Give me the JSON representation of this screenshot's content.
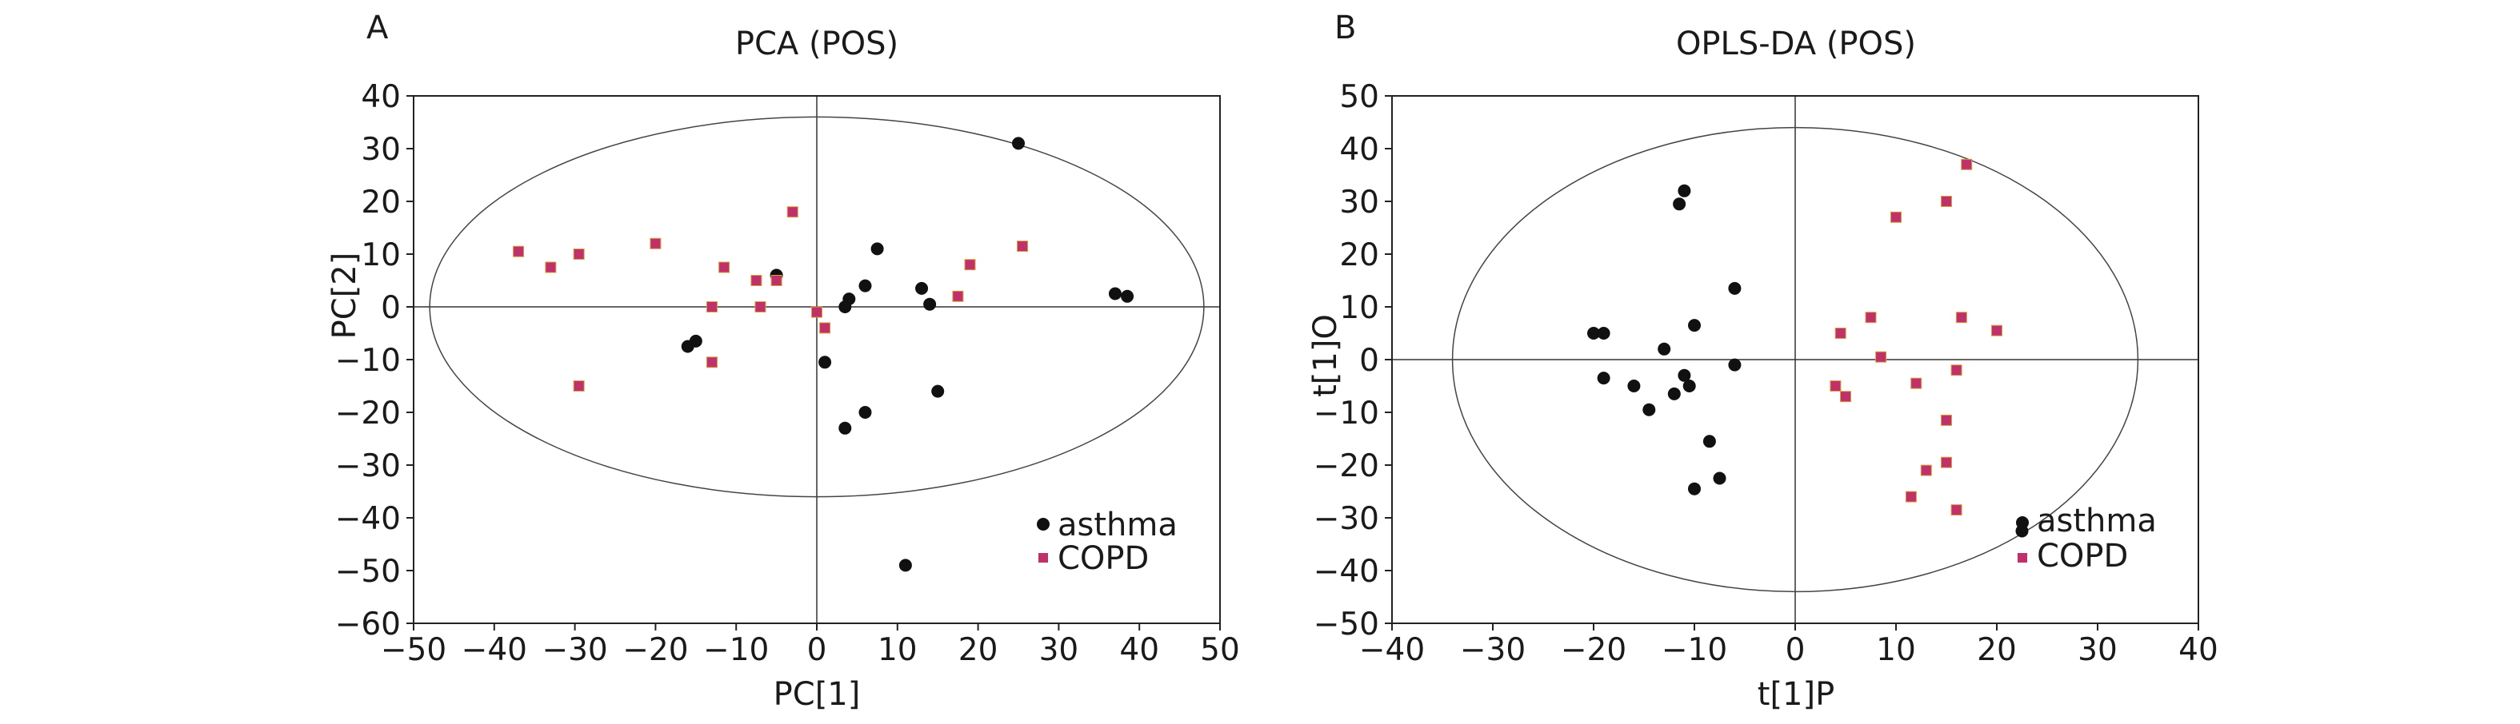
{
  "chart_data": [
    {
      "type": "scatter",
      "panel_label": "A",
      "title": "PCA (POS)",
      "xlabel": "PC[1]",
      "ylabel": "PC[2]",
      "xlim": [
        -50,
        50
      ],
      "ylim": [
        -60,
        40
      ],
      "xticks": [
        -50,
        -40,
        -30,
        -20,
        -10,
        0,
        10,
        20,
        30,
        40,
        50
      ],
      "yticks": [
        -60,
        -50,
        -40,
        -30,
        -20,
        -10,
        0,
        10,
        20,
        30,
        40
      ],
      "xtick_labels": [
        "−50",
        "−40",
        "−30",
        "−20",
        "−10",
        "0",
        "10",
        "20",
        "30",
        "40",
        "50"
      ],
      "ytick_labels": [
        "−60",
        "−50",
        "−40",
        "−30",
        "−20",
        "−10",
        "0",
        "10",
        "20",
        "30",
        "40"
      ],
      "grid": false,
      "zero_lines": true,
      "ellipse": {
        "cx": 0,
        "cy": 0,
        "rx": 48,
        "ry": 36
      },
      "legend_placement": "bottom-right",
      "series": [
        {
          "name": "asthma",
          "marker": "circle",
          "color": "#111111",
          "points": [
            [
              25,
              31
            ],
            [
              7.5,
              11
            ],
            [
              -5,
              6
            ],
            [
              6,
              4
            ],
            [
              4,
              1.5
            ],
            [
              3.5,
              0
            ],
            [
              13,
              3.5
            ],
            [
              14,
              0.5
            ],
            [
              37,
              2.5
            ],
            [
              38.5,
              2
            ],
            [
              -15,
              -6.5
            ],
            [
              -16,
              -7.5
            ],
            [
              1,
              -10.5
            ],
            [
              15,
              -16
            ],
            [
              6,
              -20
            ],
            [
              3.5,
              -23
            ],
            [
              11,
              -49
            ]
          ]
        },
        {
          "name": "COPD",
          "marker": "square",
          "color": "#c0306a",
          "points": [
            [
              -37,
              10.5
            ],
            [
              -33,
              7.5
            ],
            [
              -29.5,
              10
            ],
            [
              -20,
              12
            ],
            [
              -11.5,
              7.5
            ],
            [
              -3,
              18
            ],
            [
              -7.5,
              5
            ],
            [
              -5,
              5
            ],
            [
              -13,
              0
            ],
            [
              -7,
              0
            ],
            [
              0,
              -1
            ],
            [
              1,
              -4
            ],
            [
              -13,
              -10.5
            ],
            [
              -29.5,
              -15
            ],
            [
              17.5,
              2
            ],
            [
              19,
              8
            ],
            [
              25.5,
              11.5
            ]
          ]
        }
      ]
    },
    {
      "type": "scatter",
      "panel_label": "B",
      "title": "OPLS-DA (POS)",
      "xlabel": "t[1]P",
      "ylabel": "t[1]O",
      "xlim": [
        -40,
        40
      ],
      "ylim": [
        -50,
        50
      ],
      "xticks": [
        -40,
        -30,
        -20,
        -10,
        0,
        10,
        20,
        30,
        40
      ],
      "yticks": [
        -50,
        -40,
        -30,
        -20,
        -10,
        0,
        10,
        20,
        30,
        40,
        50
      ],
      "xtick_labels": [
        "−40",
        "−30",
        "−20",
        "−10",
        "0",
        "10",
        "20",
        "30",
        "40"
      ],
      "ytick_labels": [
        "−50",
        "−40",
        "−30",
        "−20",
        "−10",
        "0",
        "10",
        "20",
        "30",
        "40",
        "50"
      ],
      "grid": false,
      "zero_lines": true,
      "ellipse": {
        "cx": 0,
        "cy": 0,
        "rx": 34,
        "ry": 44
      },
      "legend_placement": "bottom-right",
      "series": [
        {
          "name": "asthma",
          "marker": "circle",
          "color": "#111111",
          "points": [
            [
              -11,
              32
            ],
            [
              -11.5,
              29.5
            ],
            [
              -6,
              13.5
            ],
            [
              -20,
              5
            ],
            [
              -19,
              5
            ],
            [
              -10,
              6.5
            ],
            [
              -13,
              2
            ],
            [
              -19,
              -3.5
            ],
            [
              -16,
              -5
            ],
            [
              -12,
              -6.5
            ],
            [
              -11,
              -3
            ],
            [
              -10.5,
              -5
            ],
            [
              -6,
              -1
            ],
            [
              -14.5,
              -9.5
            ],
            [
              -8.5,
              -15.5
            ],
            [
              -7.5,
              -22.5
            ],
            [
              -10,
              -24.5
            ],
            [
              22.5,
              -32.5
            ]
          ]
        },
        {
          "name": "COPD",
          "marker": "square",
          "color": "#c0306a",
          "points": [
            [
              17,
              37
            ],
            [
              10,
              27
            ],
            [
              15,
              30
            ],
            [
              7.5,
              8
            ],
            [
              16.5,
              8
            ],
            [
              20,
              5.5
            ],
            [
              4.5,
              5
            ],
            [
              8.5,
              0.5
            ],
            [
              16,
              -2
            ],
            [
              4,
              -5
            ],
            [
              5,
              -7
            ],
            [
              12,
              -4.5
            ],
            [
              15,
              -11.5
            ],
            [
              15,
              -19.5
            ],
            [
              13,
              -21
            ],
            [
              11.5,
              -26
            ],
            [
              16,
              -28.5
            ]
          ]
        }
      ]
    }
  ]
}
